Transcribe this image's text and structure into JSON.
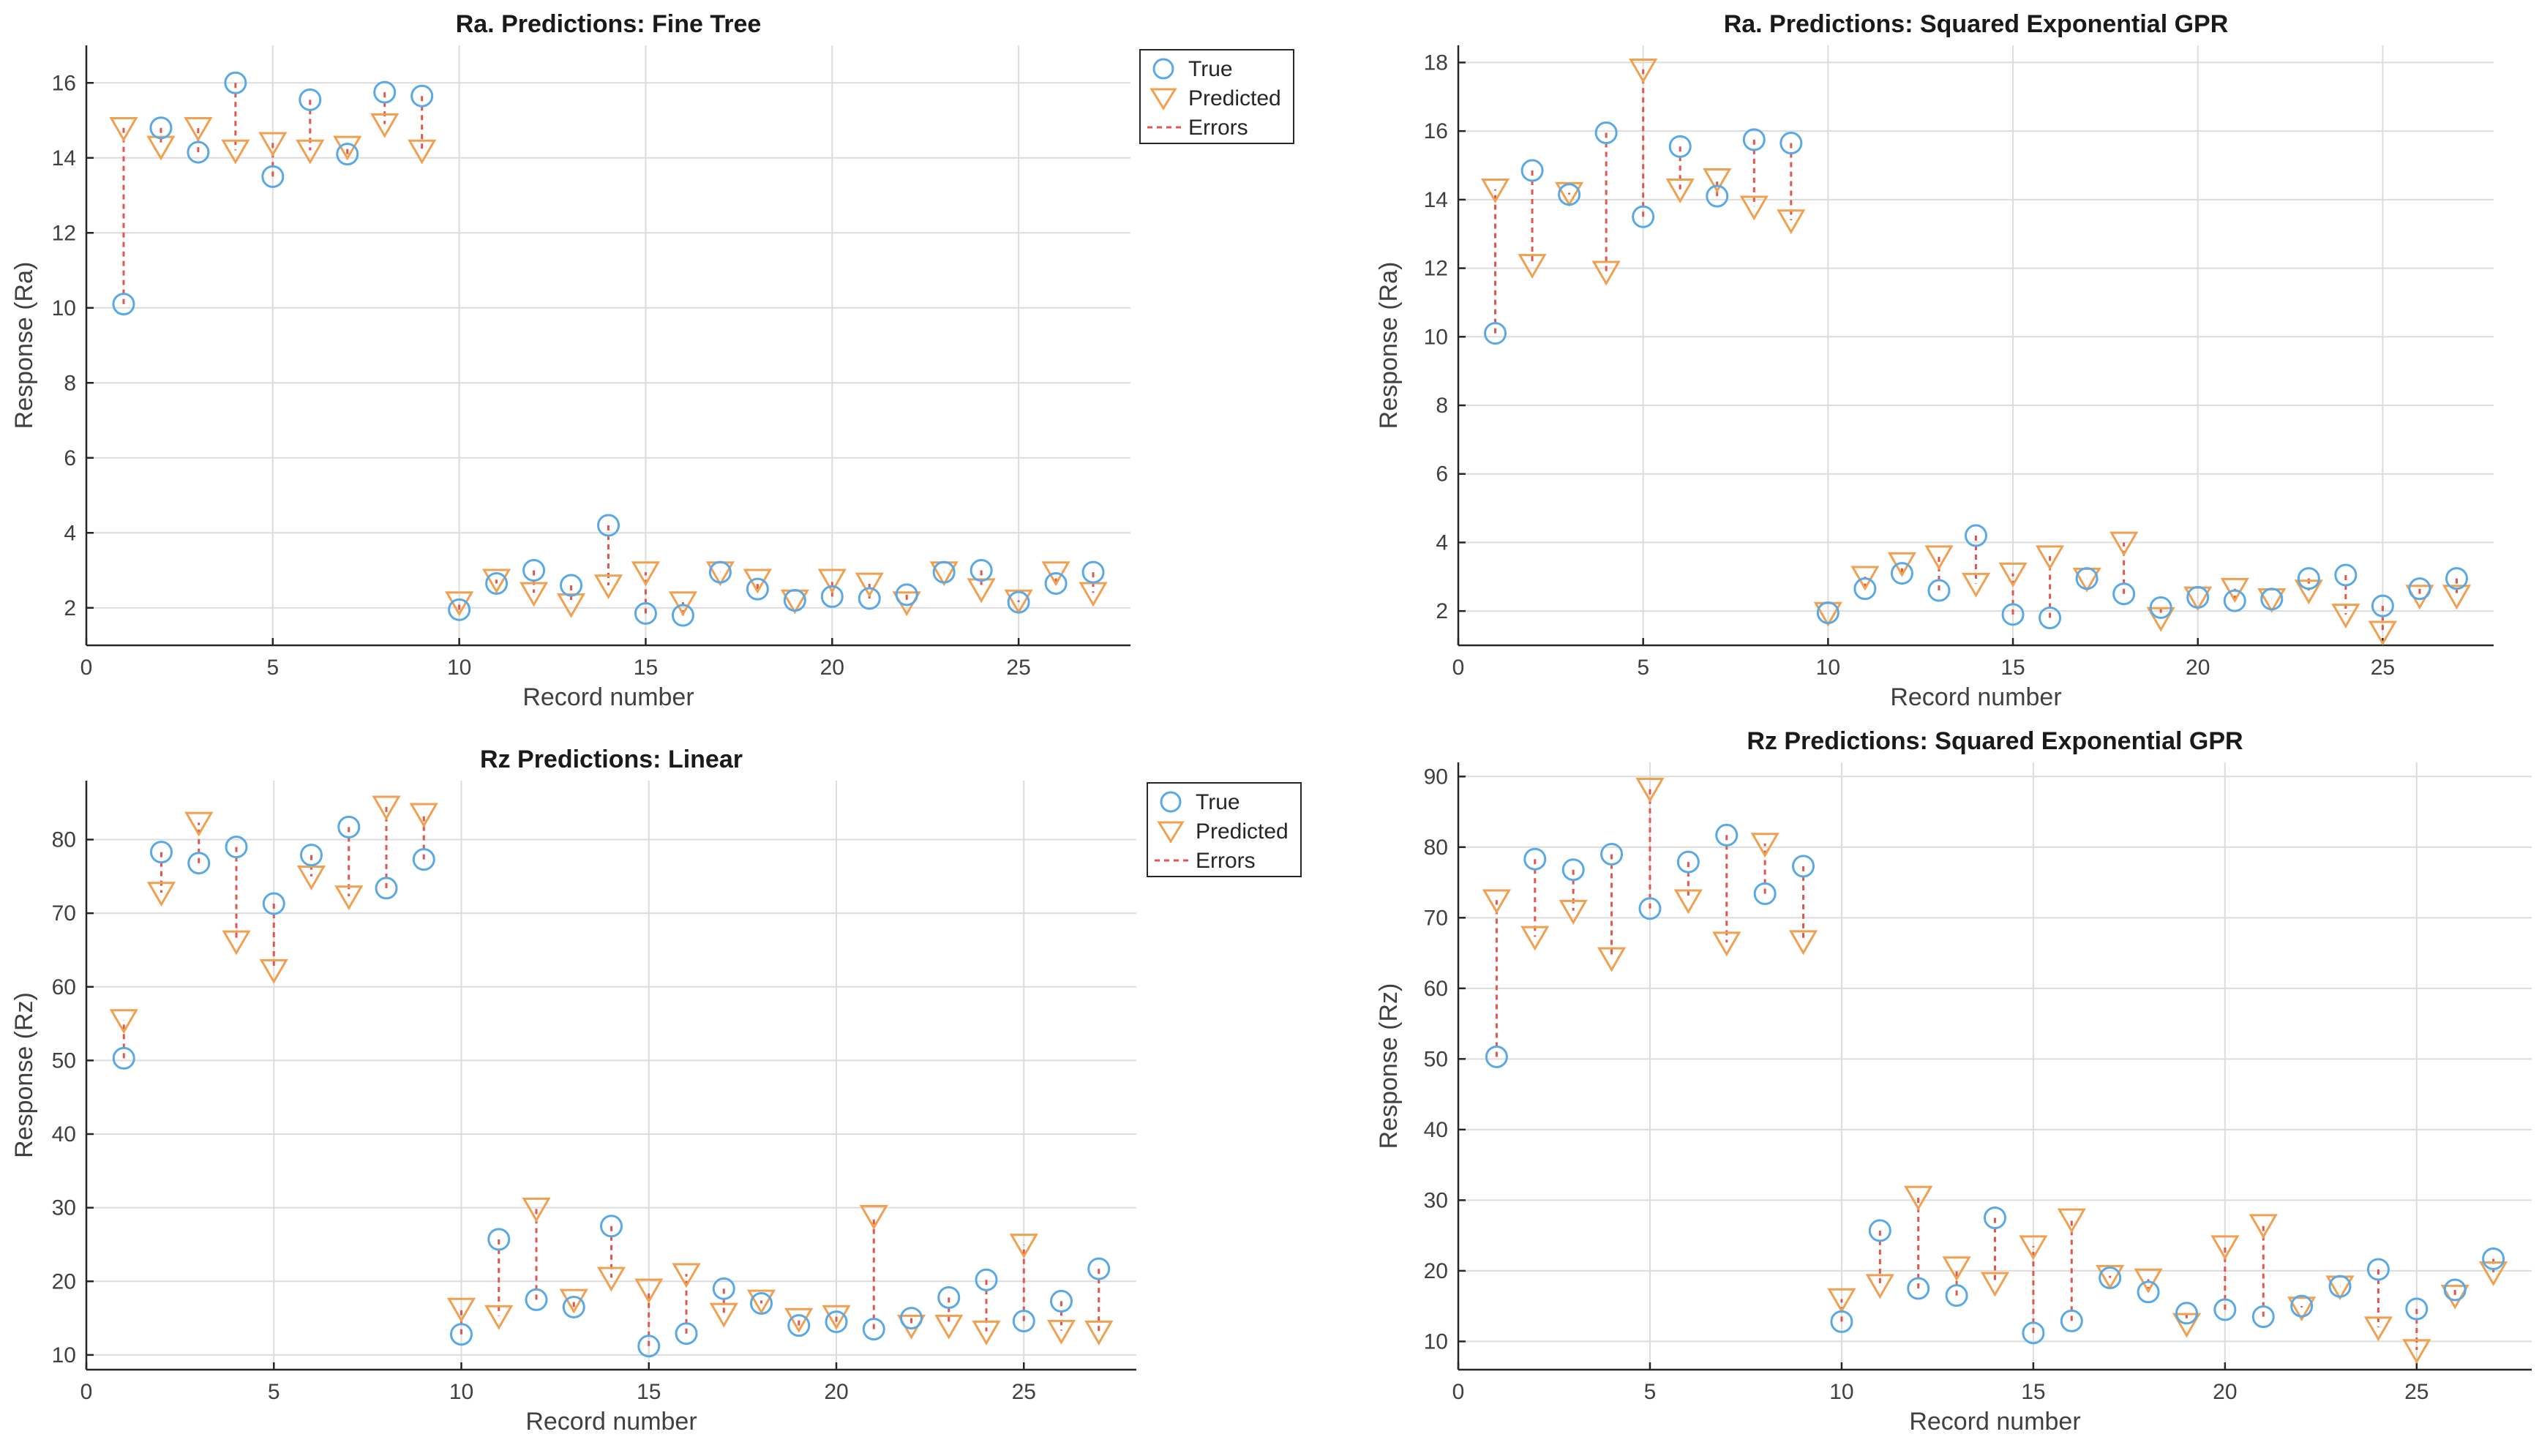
{
  "colors": {
    "true": "#5aa9e6",
    "predicted": "#f0a050",
    "errors": "#e2574c"
  },
  "chart_data": [
    {
      "type": "scatter",
      "title": "Ra. Predictions: Fine Tree",
      "xlabel": "Record number",
      "ylabel": "Response (Ra)",
      "xlim": [
        0,
        28
      ],
      "ylim": [
        1,
        17
      ],
      "xticks": [
        0,
        5,
        10,
        15,
        20,
        25
      ],
      "yticks": [
        2,
        4,
        6,
        8,
        10,
        12,
        14,
        16
      ],
      "grid": true,
      "legend": {
        "placement": "top-right",
        "entries": [
          "True",
          "Predicted",
          "Errors"
        ]
      },
      "x": [
        1,
        2,
        3,
        4,
        5,
        6,
        7,
        8,
        9,
        10,
        11,
        12,
        13,
        14,
        15,
        16,
        17,
        18,
        19,
        20,
        21,
        22,
        23,
        24,
        25,
        26,
        27
      ],
      "series": [
        {
          "name": "True",
          "values": [
            10.1,
            14.8,
            14.15,
            16,
            13.5,
            15.55,
            14.1,
            15.75,
            15.65,
            1.95,
            2.65,
            3.0,
            2.6,
            4.2,
            1.85,
            1.8,
            2.95,
            2.5,
            2.2,
            2.3,
            2.25,
            2.35,
            2.95,
            3.0,
            2.15,
            2.65,
            2.95
          ]
        },
        {
          "name": "Predicted",
          "values": [
            14.8,
            14.3,
            14.8,
            14.2,
            14.4,
            14.2,
            14.3,
            14.9,
            14.2,
            2.15,
            2.75,
            2.4,
            2.1,
            2.6,
            2.95,
            2.15,
            2.95,
            2.75,
            2.2,
            2.75,
            2.65,
            2.15,
            2.95,
            2.5,
            2.2,
            2.95,
            2.4
          ]
        }
      ]
    },
    {
      "type": "scatter",
      "title": "Ra. Predictions: Squared Exponential GPR",
      "xlabel": "Record number",
      "ylabel": "Response (Ra)",
      "xlim": [
        0,
        28
      ],
      "ylim": [
        1,
        18.5
      ],
      "xticks": [
        0,
        5,
        10,
        15,
        20,
        25
      ],
      "yticks": [
        2,
        4,
        6,
        8,
        10,
        12,
        14,
        16,
        18
      ],
      "grid": true,
      "legend": null,
      "x": [
        1,
        2,
        3,
        4,
        5,
        6,
        7,
        8,
        9,
        10,
        11,
        12,
        13,
        14,
        15,
        16,
        17,
        18,
        19,
        20,
        21,
        22,
        23,
        24,
        25,
        26,
        27
      ],
      "series": [
        {
          "name": "True",
          "values": [
            10.1,
            14.85,
            14.15,
            15.95,
            13.5,
            15.55,
            14.1,
            15.75,
            15.65,
            1.95,
            2.65,
            3.1,
            2.6,
            4.2,
            1.9,
            1.8,
            2.95,
            2.5,
            2.1,
            2.4,
            2.3,
            2.35,
            2.95,
            3.05,
            2.15,
            2.65,
            2.95
          ]
        },
        {
          "name": "Predicted",
          "values": [
            14.3,
            12.1,
            14.2,
            11.9,
            17.8,
            14.3,
            14.6,
            13.8,
            13.4,
            1.95,
            3.0,
            3.4,
            3.6,
            2.8,
            3.1,
            3.6,
            2.95,
            4.0,
            1.8,
            2.4,
            2.65,
            2.35,
            2.6,
            1.9,
            1.4,
            2.45,
            2.45
          ]
        }
      ]
    },
    {
      "type": "scatter",
      "title": "Rz Predictions: Linear",
      "xlabel": "Record number",
      "ylabel": "Response (Rz)",
      "xlim": [
        0,
        28
      ],
      "ylim": [
        8,
        88
      ],
      "xticks": [
        0,
        5,
        10,
        15,
        20,
        25
      ],
      "yticks": [
        10,
        20,
        30,
        40,
        50,
        60,
        70,
        80
      ],
      "grid": true,
      "legend": {
        "placement": "top-right",
        "entries": [
          "True",
          "Predicted",
          "Errors"
        ]
      },
      "x": [
        1,
        2,
        3,
        4,
        5,
        6,
        7,
        8,
        9,
        10,
        11,
        12,
        13,
        14,
        15,
        16,
        17,
        18,
        19,
        20,
        21,
        22,
        23,
        24,
        25,
        26,
        27
      ],
      "series": [
        {
          "name": "True",
          "values": [
            50.3,
            78.3,
            76.8,
            79,
            71.3,
            77.9,
            81.7,
            73.4,
            77.3,
            12.8,
            25.7,
            17.5,
            16.5,
            27.5,
            11.2,
            12.9,
            19,
            17,
            14,
            14.5,
            13.5,
            15,
            17.8,
            20.2,
            14.6,
            17.3,
            21.7
          ]
        },
        {
          "name": "Predicted",
          "values": [
            55.5,
            72.8,
            82.3,
            66.2,
            62.3,
            75,
            72.3,
            84.5,
            83.5,
            16.3,
            15.3,
            29.9,
            17.5,
            20.5,
            18.9,
            21,
            15.6,
            17.4,
            14.9,
            15.3,
            28.9,
            14,
            14,
            13.2,
            25,
            13.3,
            13.2
          ]
        }
      ]
    },
    {
      "type": "scatter",
      "title": "Rz Predictions: Squared Exponential GPR",
      "xlabel": "Record number",
      "ylabel": "Response (Rz)",
      "xlim": [
        0,
        28
      ],
      "ylim": [
        6,
        92
      ],
      "xticks": [
        0,
        5,
        10,
        15,
        20,
        25
      ],
      "yticks": [
        10,
        20,
        30,
        40,
        50,
        60,
        70,
        80,
        90
      ],
      "grid": true,
      "legend": null,
      "x": [
        1,
        2,
        3,
        4,
        5,
        6,
        7,
        8,
        9,
        10,
        11,
        12,
        13,
        14,
        15,
        16,
        17,
        18,
        19,
        20,
        21,
        22,
        23,
        24,
        25,
        26,
        27
      ],
      "series": [
        {
          "name": "True",
          "values": [
            50.3,
            78.3,
            76.8,
            79,
            71.3,
            77.9,
            81.7,
            73.4,
            77.3,
            12.8,
            25.7,
            17.5,
            16.5,
            27.5,
            11.2,
            12.9,
            19,
            17,
            14,
            14.5,
            13.5,
            15,
            17.8,
            20.2,
            14.6,
            17.3,
            21.7
          ]
        },
        {
          "name": "Predicted",
          "values": [
            72.5,
            67.3,
            71,
            64.3,
            88.3,
            72.5,
            66.5,
            80.5,
            66.7,
            16,
            18,
            30.5,
            20.5,
            18.3,
            23.5,
            27.3,
            19.3,
            18.8,
            12.5,
            23.5,
            26.5,
            14.8,
            17.8,
            12,
            8.8,
            16.5,
            19.8
          ]
        }
      ]
    }
  ]
}
